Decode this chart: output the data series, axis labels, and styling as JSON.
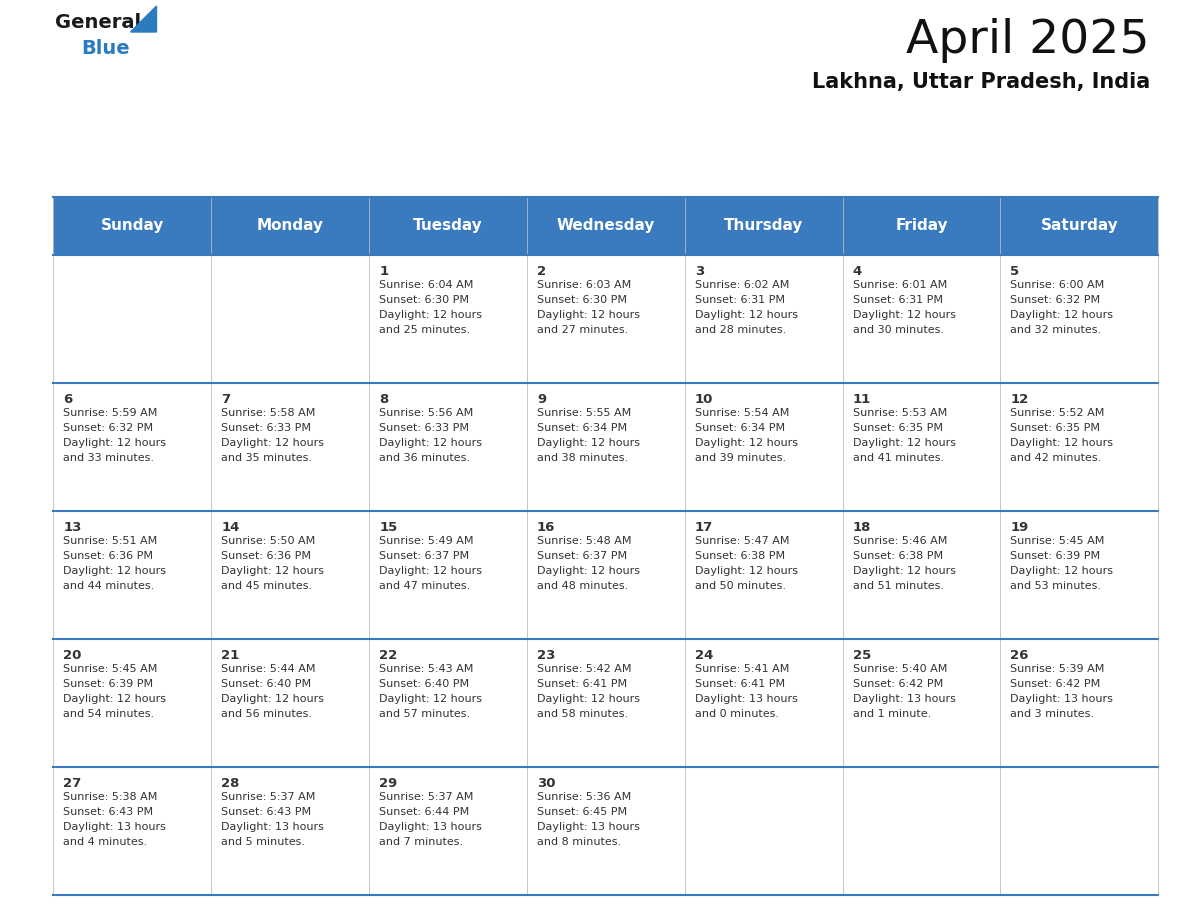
{
  "title": "April 2025",
  "subtitle": "Lakhna, Uttar Pradesh, India",
  "days_of_week": [
    "Sunday",
    "Monday",
    "Tuesday",
    "Wednesday",
    "Thursday",
    "Friday",
    "Saturday"
  ],
  "header_bg": "#3a7abf",
  "header_text": "#ffffff",
  "cell_bg": "#ffffff",
  "divider_color": "#3a7abf",
  "text_color": "#333333",
  "logo_general_color": "#1a1a1a",
  "logo_blue_color": "#2b7bbf",
  "calendar_data": [
    [
      null,
      null,
      {
        "day": 1,
        "sunrise": "6:04 AM",
        "sunset": "6:30 PM",
        "daylight": "12 hours and 25 minutes."
      },
      {
        "day": 2,
        "sunrise": "6:03 AM",
        "sunset": "6:30 PM",
        "daylight": "12 hours and 27 minutes."
      },
      {
        "day": 3,
        "sunrise": "6:02 AM",
        "sunset": "6:31 PM",
        "daylight": "12 hours and 28 minutes."
      },
      {
        "day": 4,
        "sunrise": "6:01 AM",
        "sunset": "6:31 PM",
        "daylight": "12 hours and 30 minutes."
      },
      {
        "day": 5,
        "sunrise": "6:00 AM",
        "sunset": "6:32 PM",
        "daylight": "12 hours and 32 minutes."
      }
    ],
    [
      {
        "day": 6,
        "sunrise": "5:59 AM",
        "sunset": "6:32 PM",
        "daylight": "12 hours and 33 minutes."
      },
      {
        "day": 7,
        "sunrise": "5:58 AM",
        "sunset": "6:33 PM",
        "daylight": "12 hours and 35 minutes."
      },
      {
        "day": 8,
        "sunrise": "5:56 AM",
        "sunset": "6:33 PM",
        "daylight": "12 hours and 36 minutes."
      },
      {
        "day": 9,
        "sunrise": "5:55 AM",
        "sunset": "6:34 PM",
        "daylight": "12 hours and 38 minutes."
      },
      {
        "day": 10,
        "sunrise": "5:54 AM",
        "sunset": "6:34 PM",
        "daylight": "12 hours and 39 minutes."
      },
      {
        "day": 11,
        "sunrise": "5:53 AM",
        "sunset": "6:35 PM",
        "daylight": "12 hours and 41 minutes."
      },
      {
        "day": 12,
        "sunrise": "5:52 AM",
        "sunset": "6:35 PM",
        "daylight": "12 hours and 42 minutes."
      }
    ],
    [
      {
        "day": 13,
        "sunrise": "5:51 AM",
        "sunset": "6:36 PM",
        "daylight": "12 hours and 44 minutes."
      },
      {
        "day": 14,
        "sunrise": "5:50 AM",
        "sunset": "6:36 PM",
        "daylight": "12 hours and 45 minutes."
      },
      {
        "day": 15,
        "sunrise": "5:49 AM",
        "sunset": "6:37 PM",
        "daylight": "12 hours and 47 minutes."
      },
      {
        "day": 16,
        "sunrise": "5:48 AM",
        "sunset": "6:37 PM",
        "daylight": "12 hours and 48 minutes."
      },
      {
        "day": 17,
        "sunrise": "5:47 AM",
        "sunset": "6:38 PM",
        "daylight": "12 hours and 50 minutes."
      },
      {
        "day": 18,
        "sunrise": "5:46 AM",
        "sunset": "6:38 PM",
        "daylight": "12 hours and 51 minutes."
      },
      {
        "day": 19,
        "sunrise": "5:45 AM",
        "sunset": "6:39 PM",
        "daylight": "12 hours and 53 minutes."
      }
    ],
    [
      {
        "day": 20,
        "sunrise": "5:45 AM",
        "sunset": "6:39 PM",
        "daylight": "12 hours and 54 minutes."
      },
      {
        "day": 21,
        "sunrise": "5:44 AM",
        "sunset": "6:40 PM",
        "daylight": "12 hours and 56 minutes."
      },
      {
        "day": 22,
        "sunrise": "5:43 AM",
        "sunset": "6:40 PM",
        "daylight": "12 hours and 57 minutes."
      },
      {
        "day": 23,
        "sunrise": "5:42 AM",
        "sunset": "6:41 PM",
        "daylight": "12 hours and 58 minutes."
      },
      {
        "day": 24,
        "sunrise": "5:41 AM",
        "sunset": "6:41 PM",
        "daylight": "13 hours and 0 minutes."
      },
      {
        "day": 25,
        "sunrise": "5:40 AM",
        "sunset": "6:42 PM",
        "daylight": "13 hours and 1 minute."
      },
      {
        "day": 26,
        "sunrise": "5:39 AM",
        "sunset": "6:42 PM",
        "daylight": "13 hours and 3 minutes."
      }
    ],
    [
      {
        "day": 27,
        "sunrise": "5:38 AM",
        "sunset": "6:43 PM",
        "daylight": "13 hours and 4 minutes."
      },
      {
        "day": 28,
        "sunrise": "5:37 AM",
        "sunset": "6:43 PM",
        "daylight": "13 hours and 5 minutes."
      },
      {
        "day": 29,
        "sunrise": "5:37 AM",
        "sunset": "6:44 PM",
        "daylight": "13 hours and 7 minutes."
      },
      {
        "day": 30,
        "sunrise": "5:36 AM",
        "sunset": "6:45 PM",
        "daylight": "13 hours and 8 minutes."
      },
      null,
      null,
      null
    ]
  ]
}
